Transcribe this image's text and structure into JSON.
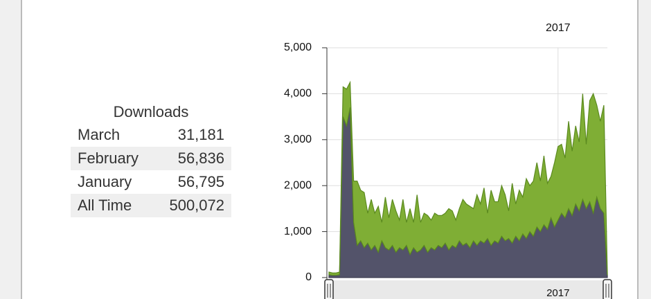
{
  "table": {
    "title": "Downloads",
    "rows": [
      [
        "March",
        "31,181"
      ],
      [
        "February",
        "56,836"
      ],
      [
        "January",
        "56,795"
      ],
      [
        "All Time",
        "500,072"
      ]
    ]
  },
  "chart_data": {
    "type": "area",
    "stacked": true,
    "categories": [
      null,
      null,
      null,
      null,
      null,
      null,
      null,
      null,
      null,
      null,
      null,
      null,
      null,
      null,
      null,
      null,
      null,
      null,
      null,
      null,
      null,
      null,
      null,
      null,
      null,
      null,
      null,
      null,
      null,
      null,
      null,
      null,
      null,
      null,
      null,
      null,
      null,
      null,
      null,
      null,
      null,
      null,
      null,
      null,
      null,
      null,
      null,
      null,
      null,
      null,
      null,
      null,
      null,
      null,
      null,
      null,
      null,
      null,
      null,
      null,
      null,
      null,
      null,
      null,
      null,
      "2017",
      null,
      null,
      null,
      null,
      null,
      null,
      null,
      null,
      null,
      null,
      null,
      null,
      null,
      null
    ],
    "series": [
      {
        "color": "#53536a",
        "values": [
          60,
          50,
          50,
          60,
          3500,
          3300,
          3700,
          1200,
          700,
          800,
          650,
          750,
          600,
          700,
          550,
          800,
          650,
          600,
          700,
          550,
          650,
          600,
          700,
          500,
          650,
          550,
          600,
          700,
          550,
          650,
          600,
          700,
          650,
          750,
          600,
          700,
          650,
          800,
          700,
          750,
          650,
          800,
          700,
          800,
          750,
          850,
          700,
          800,
          750,
          900,
          800,
          850,
          750,
          900,
          800,
          950,
          850,
          1000,
          900,
          1100,
          1000,
          1150,
          1050,
          1300,
          1100,
          1250,
          1400,
          1300,
          1500,
          1350,
          1600,
          1450,
          1700,
          1500,
          1650,
          1400,
          1750,
          1500,
          1400,
          50
        ]
      },
      {
        "color": "#7fae35",
        "values": [
          60,
          50,
          50,
          60,
          650,
          800,
          550,
          900,
          1400,
          1100,
          1200,
          650,
          1100,
          700,
          1000,
          400,
          1100,
          700,
          1000,
          900,
          600,
          1100,
          500,
          1000,
          550,
          1250,
          600,
          700,
          800,
          600,
          800,
          650,
          700,
          650,
          900,
          750,
          600,
          700,
          1000,
          850,
          900,
          700,
          1100,
          800,
          1200,
          550,
          1200,
          850,
          900,
          1100,
          1000,
          600,
          1300,
          700,
          1100,
          800,
          1300,
          1000,
          1200,
          1400,
          1100,
          1500,
          1000,
          900,
          1400,
          1600,
          1500,
          1300,
          1900,
          1400,
          1700,
          1500,
          2300,
          1400,
          2200,
          2600,
          2000,
          1900,
          2350,
          30
        ]
      }
    ],
    "ylim": [
      0,
      5000
    ],
    "yticks": [
      0,
      {
        "value": 1000,
        "label": "1,000"
      },
      {
        "value": 2000,
        "label": "2,000"
      },
      {
        "value": 3000,
        "label": "3,000"
      },
      {
        "value": 4000,
        "label": "4,000"
      },
      {
        "value": 5000,
        "label": "5,000"
      }
    ],
    "grid": true
  }
}
